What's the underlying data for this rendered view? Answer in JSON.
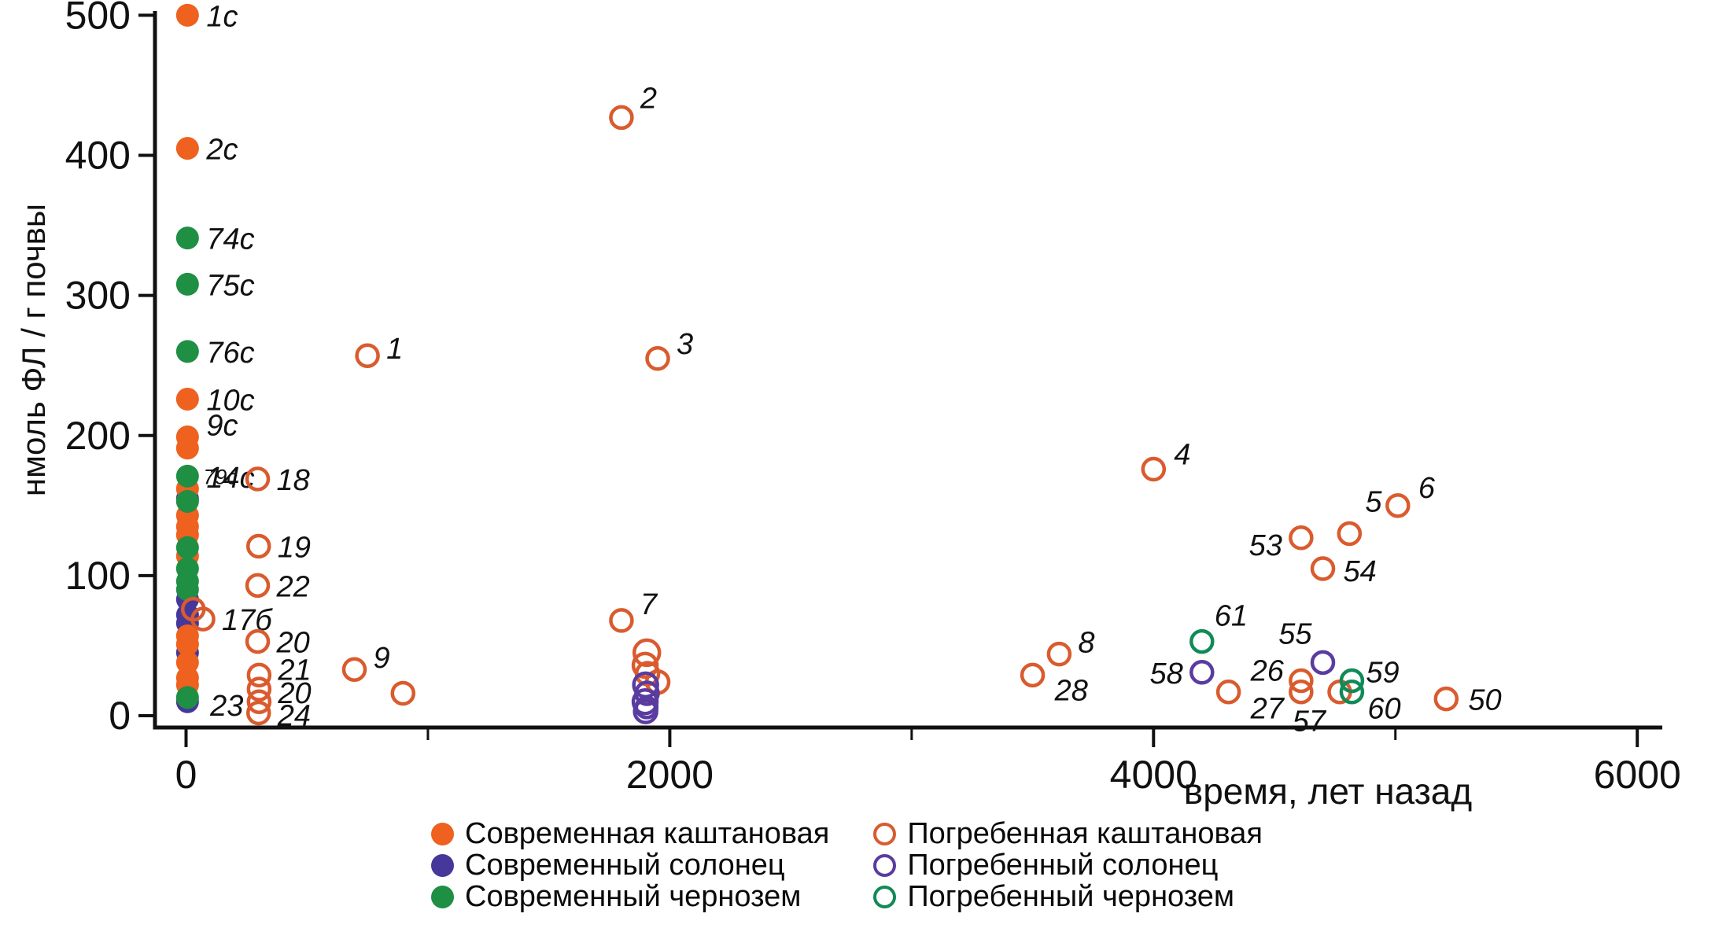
{
  "chart_data": {
    "type": "scatter",
    "title": "",
    "xlabel": "время, лет назад",
    "ylabel": "нмоль ФЛ / г почвы",
    "xlim": [
      0,
      6000
    ],
    "ylim": [
      0,
      500
    ],
    "grid": false,
    "x_ticks": [
      0,
      2000,
      4000,
      6000
    ],
    "x_minor_ticks": [
      1000,
      3000,
      5000
    ],
    "y_ticks": [
      0,
      100,
      200,
      300,
      400,
      500
    ],
    "legend_position": "bottom",
    "series": [
      {
        "name": "Современный солонец",
        "marker": "filled",
        "color": "#46379B",
        "points": [
          {
            "x": 6,
            "y": 155
          },
          {
            "x": 6,
            "y": 83
          },
          {
            "x": 6,
            "y": 72
          },
          {
            "x": 6,
            "y": 66
          },
          {
            "x": 6,
            "y": 45
          },
          {
            "x": 6,
            "y": 10
          }
        ]
      },
      {
        "name": "Современная каштановая",
        "marker": "filled",
        "color": "#EE611F",
        "points": [
          {
            "x": 6,
            "y": 500,
            "l": "1c"
          },
          {
            "x": 6,
            "y": 405,
            "l": "2c"
          },
          {
            "x": 6,
            "y": 226,
            "l": "10c"
          },
          {
            "x": 6,
            "y": 199,
            "l": "9c",
            "dy": -2
          },
          {
            "x": 6,
            "y": 191,
            "l": "14c",
            "dy": 50
          },
          {
            "x": 6,
            "y": 162
          },
          {
            "x": 6,
            "y": 143
          },
          {
            "x": 6,
            "y": 135
          },
          {
            "x": 6,
            "y": 129
          },
          {
            "x": 6,
            "y": 114
          },
          {
            "x": 6,
            "y": 57
          },
          {
            "x": 6,
            "y": 51
          },
          {
            "x": 6,
            "y": 38
          },
          {
            "x": 6,
            "y": 27
          },
          {
            "x": 6,
            "y": 22
          }
        ]
      },
      {
        "name": "Современный чернозем",
        "marker": "filled",
        "color": "#1F8F44",
        "points": [
          {
            "x": 6,
            "y": 341,
            "l": "74c"
          },
          {
            "x": 6,
            "y": 308,
            "l": "75c"
          },
          {
            "x": 6,
            "y": 260,
            "l": "76c"
          },
          {
            "x": 6,
            "y": 171,
            "l": "79c",
            "fs": 27,
            "dx": 20,
            "dy": 10
          },
          {
            "x": 6,
            "y": 153
          },
          {
            "x": 6,
            "y": 120
          },
          {
            "x": 6,
            "y": 105
          },
          {
            "x": 6,
            "y": 96
          },
          {
            "x": 6,
            "y": 90
          },
          {
            "x": 6,
            "y": 13
          }
        ]
      },
      {
        "name": "Погребенная каштановая",
        "marker": "open",
        "color": "#D95B2E",
        "points": [
          {
            "x": 30,
            "y": 76
          },
          {
            "x": 70,
            "y": 69,
            "l": "17б"
          },
          {
            "x": 296,
            "y": 169,
            "l": "18"
          },
          {
            "x": 300,
            "y": 121,
            "l": "19"
          },
          {
            "x": 296,
            "y": 93,
            "l": "22"
          },
          {
            "x": 296,
            "y": 53,
            "l": "20"
          },
          {
            "x": 302,
            "y": 29,
            "l": "21",
            "dy": 6
          },
          {
            "x": 302,
            "y": 19,
            "l": "20",
            "dy": 18
          },
          {
            "x": 302,
            "y": 10,
            "l": "23",
            "a": "e",
            "dx": -20,
            "dy": 18
          },
          {
            "x": 300,
            "y": 2,
            "l": "24",
            "dy": 16
          },
          {
            "x": 750,
            "y": 257,
            "l": "1",
            "dy": 4
          },
          {
            "x": 696,
            "y": 33,
            "l": "9",
            "dy": -2
          },
          {
            "x": 897,
            "y": 16
          },
          {
            "x": 1800,
            "y": 427,
            "l": "2",
            "dy": -12
          },
          {
            "x": 1950,
            "y": 255,
            "l": "3",
            "dy": -6
          },
          {
            "x": 1800,
            "y": 68,
            "l": "7",
            "dy": -8
          },
          {
            "x": 1905,
            "y": 45,
            "r": 16
          },
          {
            "x": 1898,
            "y": 36,
            "r": 15
          },
          {
            "x": 1908,
            "y": 30,
            "r": 14
          },
          {
            "x": 1950,
            "y": 24,
            "r": 14
          },
          {
            "x": 3610,
            "y": 44,
            "l": "8",
            "dy": -2
          },
          {
            "x": 3500,
            "y": 29,
            "l": "28",
            "dx": 28,
            "dy": 32
          },
          {
            "x": 4310,
            "y": 17
          },
          {
            "x": 4000,
            "y": 176,
            "l": "4",
            "dx": 26,
            "dy": -6
          },
          {
            "x": 4610,
            "y": 127,
            "l": "53",
            "a": "e",
            "dx": -24,
            "dy": 22
          },
          {
            "x": 4810,
            "y": 130,
            "l": "5",
            "dx": 20,
            "dy": -28
          },
          {
            "x": 5010,
            "y": 150,
            "l": "6",
            "dx": 26,
            "dy": -10
          },
          {
            "x": 4700,
            "y": 105,
            "l": "54",
            "dx": 26,
            "dy": 16
          },
          {
            "x": 4610,
            "y": 25,
            "l": "26",
            "a": "e",
            "dx": -22,
            "dy": 0
          },
          {
            "x": 4610,
            "y": 17,
            "l": "27",
            "a": "e",
            "dx": -22,
            "dy": 34
          },
          {
            "x": 4770,
            "y": 17,
            "l": "57",
            "a": "e",
            "dx": -18,
            "dy": 50
          },
          {
            "x": 5210,
            "y": 12,
            "l": "50",
            "dx": 28,
            "dy": 14
          }
        ]
      },
      {
        "name": "Погребенный солонец",
        "marker": "open",
        "color": "#5A3CA0",
        "points": [
          {
            "x": 1900,
            "y": 22,
            "r": 15
          },
          {
            "x": 1906,
            "y": 16,
            "r": 14
          },
          {
            "x": 1898,
            "y": 10,
            "r": 15
          },
          {
            "x": 1904,
            "y": 6,
            "r": 13
          },
          {
            "x": 1900,
            "y": 3,
            "r": 14
          },
          {
            "x": 4200,
            "y": 31,
            "l": "58",
            "a": "e",
            "dx": -24,
            "dy": 14
          },
          {
            "x": 4700,
            "y": 38,
            "l": "55",
            "a": "e",
            "dx": -14,
            "dy": -24
          }
        ]
      },
      {
        "name": "Погребенный чернозем",
        "marker": "open",
        "color": "#128A58",
        "points": [
          {
            "x": 4200,
            "y": 53,
            "l": "61",
            "dx": 16,
            "dy": -20
          },
          {
            "x": 4820,
            "y": 25,
            "l": "59",
            "dx": 18,
            "dy": 2
          },
          {
            "x": 4820,
            "y": 17,
            "l": "60",
            "dx": 20,
            "dy": 34
          }
        ]
      }
    ]
  },
  "legend": {
    "items": [
      {
        "label": "Современная каштановая",
        "marker": "filled",
        "color": "#EE611F"
      },
      {
        "label": "Современный солонец",
        "marker": "filled",
        "color": "#46379B"
      },
      {
        "label": "Современный чернозем",
        "marker": "filled",
        "color": "#1F8F44"
      },
      {
        "label": "Погребенная каштановая",
        "marker": "open",
        "color": "#D95B2E"
      },
      {
        "label": "Погребенный солонец",
        "marker": "open",
        "color": "#5A3CA0"
      },
      {
        "label": "Погребенный чернозем",
        "marker": "open",
        "color": "#128A58"
      }
    ]
  },
  "colors": {
    "axis": "#111111",
    "background": "#ffffff"
  }
}
